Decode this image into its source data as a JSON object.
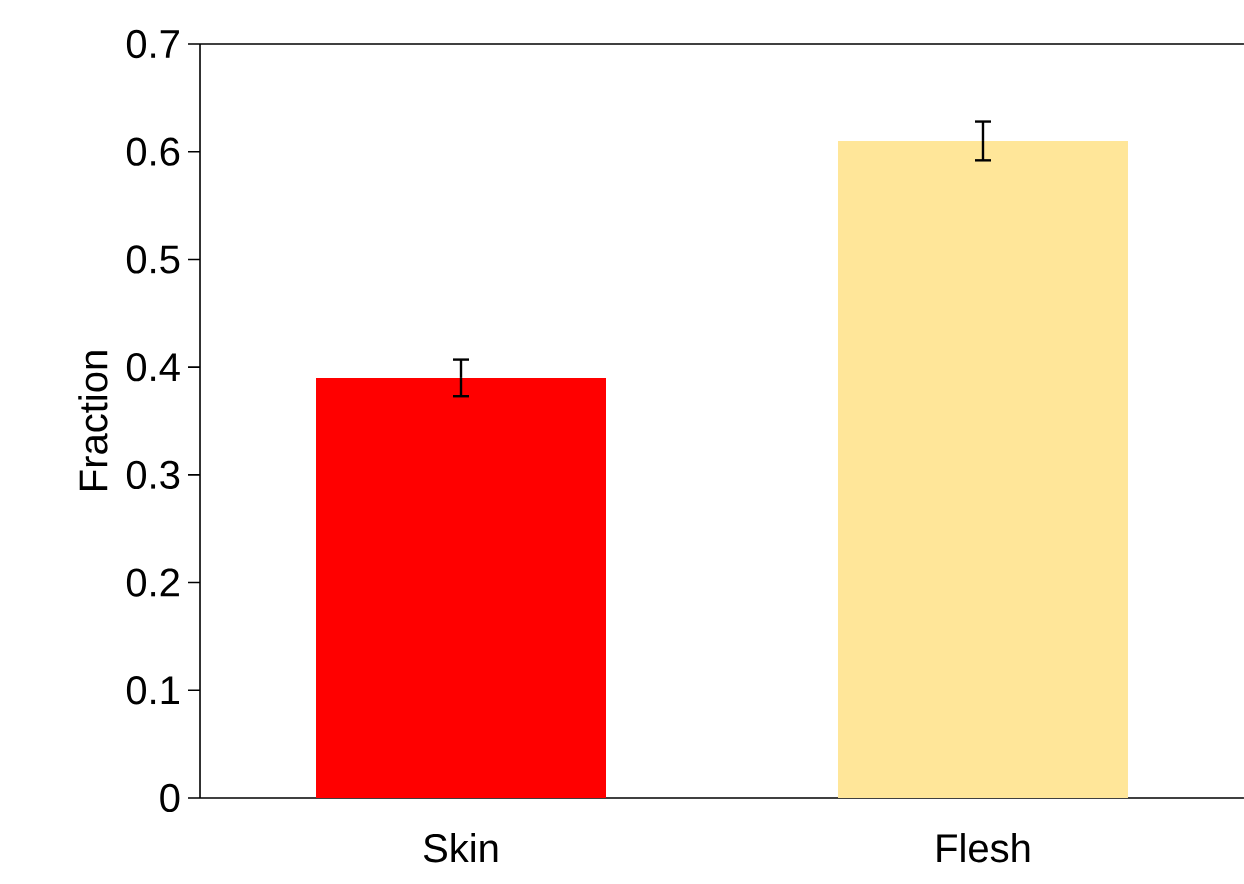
{
  "chart_data": {
    "type": "bar",
    "ylabel": "Fraction",
    "categories": [
      "Skin",
      "Flesh"
    ],
    "values": [
      0.39,
      0.61
    ],
    "errors": [
      0.017,
      0.018
    ],
    "colors": [
      "#ff0000",
      "#ffe699"
    ],
    "ylim": [
      0,
      0.7
    ],
    "yticks": [
      0,
      0.1,
      0.2,
      0.3,
      0.4,
      0.5,
      0.6,
      0.7
    ],
    "grid": false
  }
}
